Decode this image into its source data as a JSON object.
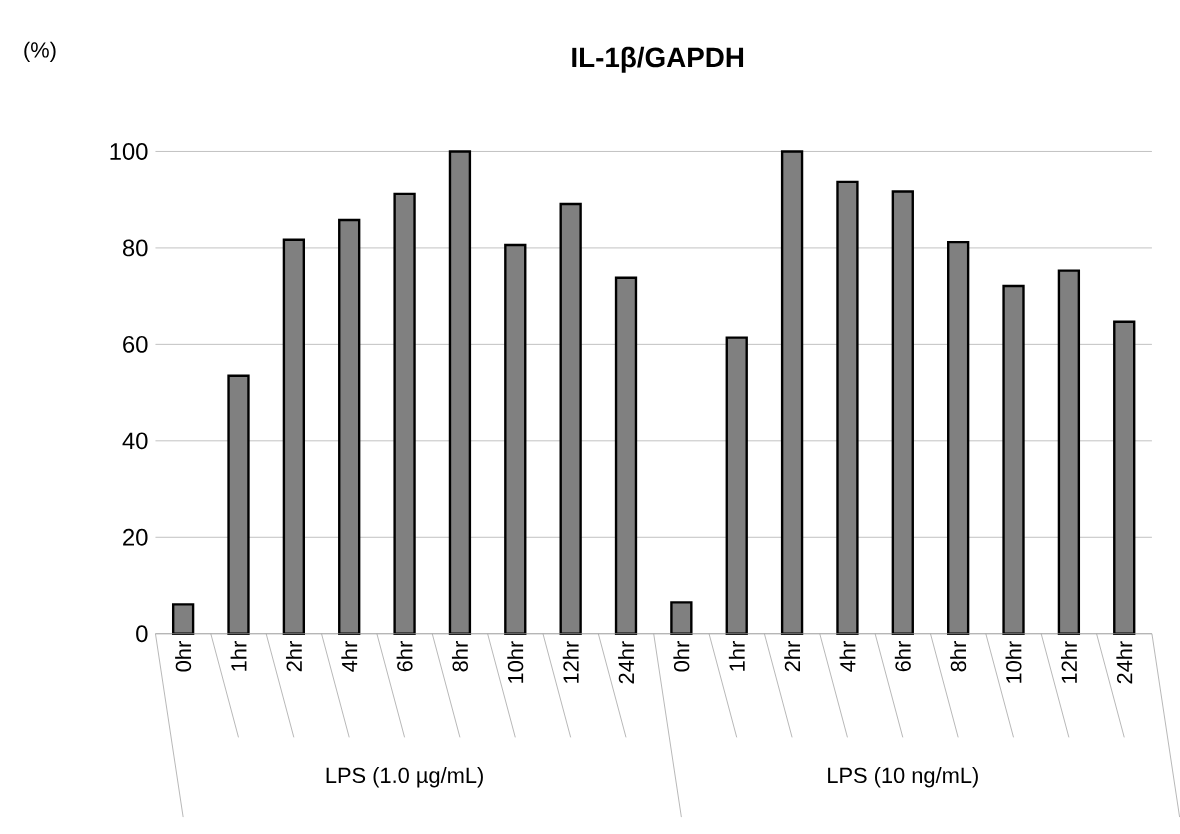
{
  "chart_data": {
    "type": "bar",
    "title": "**IL-1β/GAPDH**",
    "ylabel": "(%)",
    "categories": [
      "0hr",
      "1hr",
      "2hr",
      "4hr",
      "6hr",
      "8hr",
      "10hr",
      "12hr",
      "24hr",
      "0hr",
      "1hr",
      "2hr",
      "4hr",
      "6hr",
      "8hr",
      "10hr",
      "12hr",
      "24hr"
    ],
    "values": [
      6.1,
      53.5,
      81.7,
      85.8,
      91.2,
      100,
      80.6,
      89.1,
      73.8,
      6.5,
      61.4,
      100,
      93.7,
      91.7,
      81.2,
      72.1,
      75.3,
      64.7
    ],
    "color": "#808080",
    "ylim": [
      0,
      100
    ],
    "yticks": [
      0,
      20,
      40,
      60,
      80,
      100
    ],
    "grid": "y",
    "annotations": [
      "LPS (1.0 µg/mL)",
      "LPS (10 ng/mL)"
    ]
  }
}
